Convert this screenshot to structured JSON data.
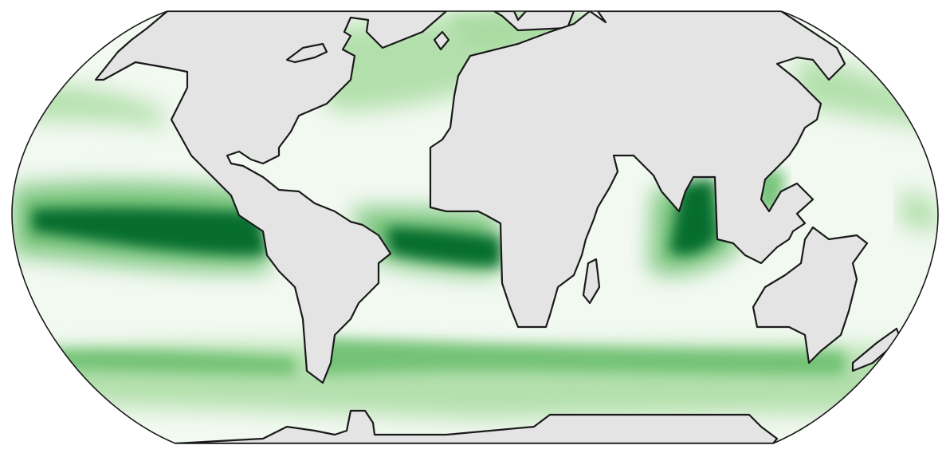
{
  "map": {
    "projection": "Robinson",
    "field_colormap": "Greens",
    "colors": {
      "land": "#e4e4e4",
      "coastline": "#1a1a1a",
      "ocean_low": "#f2f9f1",
      "ocean_mid": "#a8dba0",
      "ocean_high": "#6cbf6f",
      "ocean_max": "#00692a",
      "outline": "#1a1a1a"
    },
    "features": [
      {
        "name": "pacific-equatorial-band",
        "intensity": "max"
      },
      {
        "name": "atlantic-equatorial-band",
        "intensity": "max"
      },
      {
        "name": "bay-of-bengal-band",
        "intensity": "max"
      },
      {
        "name": "southern-ocean-band",
        "intensity": "high"
      },
      {
        "name": "north-atlantic-band",
        "intensity": "mid"
      },
      {
        "name": "north-pacific-band",
        "intensity": "mid"
      }
    ]
  }
}
